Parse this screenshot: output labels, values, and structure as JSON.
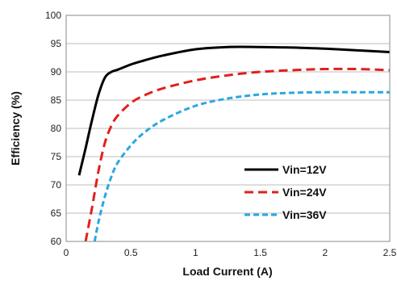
{
  "chart_data": {
    "type": "line",
    "title": "",
    "xlabel": "Load Current (A)",
    "ylabel": "Efficiency (%)",
    "xlim": [
      0,
      2.5
    ],
    "ylim": [
      60,
      100
    ],
    "xticks": [
      0,
      0.5,
      1,
      1.5,
      2,
      2.5
    ],
    "xtick_labels": [
      "0",
      "0.5",
      "1",
      "1.5",
      "2",
      "2.5"
    ],
    "yticks": [
      60,
      65,
      70,
      75,
      80,
      85,
      90,
      95,
      100
    ],
    "ytick_labels": [
      "60",
      "65",
      "70",
      "75",
      "80",
      "85",
      "90",
      "95",
      "100"
    ],
    "grid": "horizontal",
    "legend_position": "bottom-right",
    "series": [
      {
        "name": "Vin=12V",
        "color": "#000000",
        "style": "solid",
        "x": [
          0.1,
          0.15,
          0.2,
          0.25,
          0.3,
          0.35,
          0.4,
          0.5,
          0.6,
          0.75,
          1.0,
          1.25,
          1.5,
          1.75,
          2.0,
          2.25,
          2.5
        ],
        "y": [
          71.7,
          76.5,
          81.5,
          86.0,
          89.0,
          90.0,
          90.4,
          91.3,
          92.0,
          92.9,
          94.0,
          94.4,
          94.4,
          94.3,
          94.1,
          93.8,
          93.5
        ]
      },
      {
        "name": "Vin=24V",
        "color": "#e0201c",
        "style": "dashed",
        "x": [
          0.15,
          0.2,
          0.25,
          0.3,
          0.35,
          0.4,
          0.5,
          0.6,
          0.75,
          1.0,
          1.25,
          1.5,
          1.75,
          2.0,
          2.25,
          2.5
        ],
        "y": [
          60.0,
          66.0,
          72.5,
          77.5,
          80.5,
          82.3,
          84.5,
          85.8,
          87.1,
          88.5,
          89.4,
          90.0,
          90.3,
          90.5,
          90.5,
          90.3
        ]
      },
      {
        "name": "Vin=36V",
        "color": "#29a8e0",
        "style": "dashed",
        "x": [
          0.22,
          0.25,
          0.3,
          0.35,
          0.4,
          0.5,
          0.6,
          0.75,
          1.0,
          1.25,
          1.5,
          1.75,
          2.0,
          2.25,
          2.5
        ],
        "y": [
          60.0,
          63.5,
          68.0,
          71.5,
          74.0,
          77.0,
          79.2,
          81.5,
          84.0,
          85.3,
          86.0,
          86.3,
          86.4,
          86.4,
          86.4
        ]
      }
    ]
  }
}
